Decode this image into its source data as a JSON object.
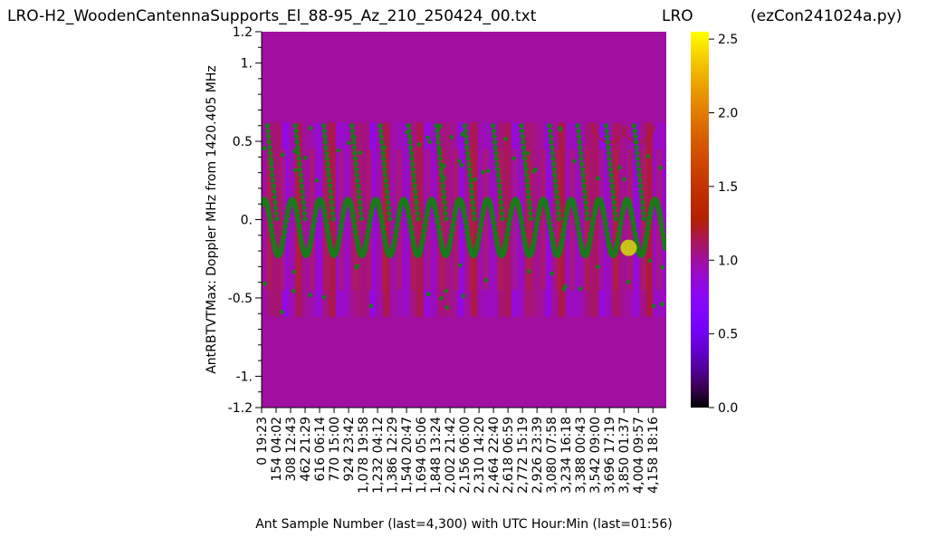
{
  "titles": {
    "file": "LRO-H2_WoodenCantennaSupports_El_88-95_Az_210_250424_00.txt",
    "station": "LRO",
    "program": "(ezCon241024a.py)"
  },
  "chart_data": {
    "type": "heatmap",
    "xlabel": "Ant Sample Number (last=4,300) with UTC Hour:Min (last=01:56)",
    "ylabel": "AntRBTVTMax:  Doppler MHz from 1420.405 MHz",
    "ylim": [
      -1.2,
      1.2
    ],
    "y_ticks": [
      {
        "v": 1.2,
        "label": "1.2"
      },
      {
        "v": 1.0,
        "label": "1."
      },
      {
        "v": 0.5,
        "label": "0.5"
      },
      {
        "v": 0.0,
        "label": "0."
      },
      {
        "v": -0.5,
        "label": "-0.5"
      },
      {
        "v": -1.0,
        "label": "-1."
      },
      {
        "v": -1.2,
        "label": "-1.2"
      }
    ],
    "y_minor_ticks": [
      1.1,
      0.9,
      0.8,
      0.7,
      0.6,
      0.4,
      0.3,
      0.2,
      0.1,
      -0.1,
      -0.2,
      -0.3,
      -0.4,
      -0.6,
      -0.7,
      -0.8,
      -0.9,
      -1.1
    ],
    "xlim": [
      0,
      4300
    ],
    "x_ticks": [
      {
        "v": 0,
        "label": "0 19:23"
      },
      {
        "v": 154,
        "label": "154 04:02"
      },
      {
        "v": 308,
        "label": "308 12:43"
      },
      {
        "v": 462,
        "label": "462 21:29"
      },
      {
        "v": 616,
        "label": "616 06:14"
      },
      {
        "v": 770,
        "label": "770 15:00"
      },
      {
        "v": 924,
        "label": "924 23:42"
      },
      {
        "v": 1078,
        "label": "1,078 19:58"
      },
      {
        "v": 1232,
        "label": "1,232 04:12"
      },
      {
        "v": 1386,
        "label": "1,386 12:29"
      },
      {
        "v": 1540,
        "label": "1,540 20:47"
      },
      {
        "v": 1694,
        "label": "1,694 05:06"
      },
      {
        "v": 1848,
        "label": "1,848 13:24"
      },
      {
        "v": 2002,
        "label": "2,002 21:42"
      },
      {
        "v": 2156,
        "label": "2,156 06:00"
      },
      {
        "v": 2310,
        "label": "2,310 14:20"
      },
      {
        "v": 2464,
        "label": "2,464 22:40"
      },
      {
        "v": 2618,
        "label": "2,618 06:59"
      },
      {
        "v": 2772,
        "label": "2,772 15:19"
      },
      {
        "v": 2926,
        "label": "2,926 23:39"
      },
      {
        "v": 3080,
        "label": "3,080 07:58"
      },
      {
        "v": 3234,
        "label": "3,234 16:18"
      },
      {
        "v": 3388,
        "label": "3,388 00:43"
      },
      {
        "v": 3542,
        "label": "3,542 09:00"
      },
      {
        "v": 3696,
        "label": "3,696 17:19"
      },
      {
        "v": 3850,
        "label": "3,850 01:37"
      },
      {
        "v": 4004,
        "label": "4,004 09:57"
      },
      {
        "v": 4158,
        "label": "4,158 18:16"
      }
    ],
    "data_band": {
      "y_min": -0.62,
      "y_max": 0.62
    },
    "background_value": 1.0,
    "marker": {
      "x": 3900,
      "y": -0.18,
      "color": "#c9c21a"
    },
    "trace_color": "#1a7a1a",
    "colorbar": {
      "min": 0.0,
      "max": 2.55,
      "ticks": [
        {
          "v": 0.0,
          "label": "0.0"
        },
        {
          "v": 0.5,
          "label": "0.5"
        },
        {
          "v": 1.0,
          "label": "1.0"
        },
        {
          "v": 1.5,
          "label": "1.5"
        },
        {
          "v": 2.0,
          "label": "2.0"
        },
        {
          "v": 2.5,
          "label": "2.5"
        }
      ],
      "colormap": "gnuplot"
    }
  }
}
